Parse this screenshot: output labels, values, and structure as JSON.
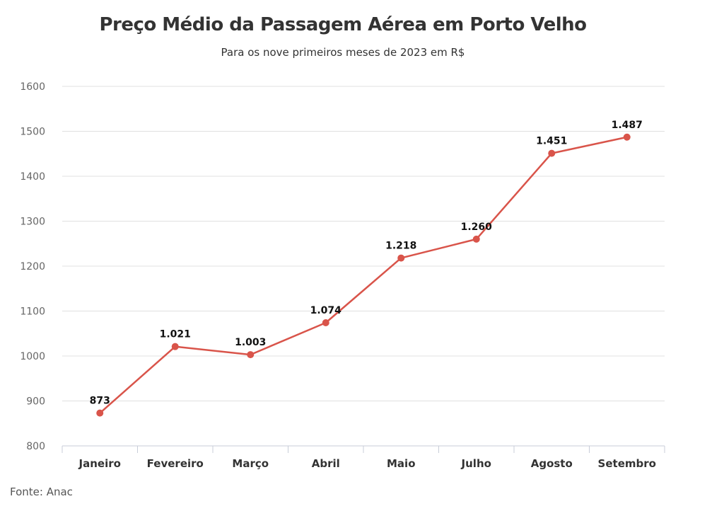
{
  "chart_data": {
    "type": "line",
    "title": "Preço Médio da Passagem Aérea em Porto Velho",
    "subtitle": "Para os nove primeiros meses de 2023 em R$",
    "source": "Fonte: Anac",
    "categories": [
      "Janeiro",
      "Fevereiro",
      "Março",
      "Abril",
      "Maio",
      "Julho",
      "Agosto",
      "Setembro"
    ],
    "series": [
      {
        "name": "Preço médio",
        "values": [
          873,
          1021,
          1003,
          1074,
          1218,
          1260,
          1451,
          1487
        ],
        "data_labels": [
          "873",
          "1.021",
          "1.003",
          "1.074",
          "1.218",
          "1.260",
          "1.451",
          "1.487"
        ]
      }
    ],
    "ylim": [
      800,
      1600
    ],
    "yticks": [
      800,
      900,
      1000,
      1100,
      1200,
      1300,
      1400,
      1500,
      1600
    ],
    "xlabel": "",
    "ylabel": "",
    "grid": true,
    "legend": "none",
    "colors": {
      "line": "#d9544a",
      "grid": "#e0e0e0",
      "axis": "#c8cdd8"
    }
  }
}
